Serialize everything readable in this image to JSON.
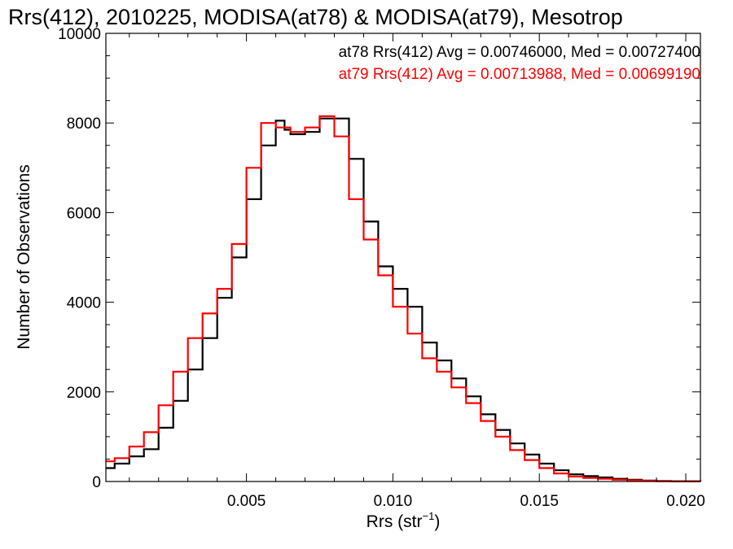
{
  "chart_data": {
    "type": "line",
    "title": "Rrs(412), 2010225, MODISA(at78) & MODISA(at79), Mesotrop",
    "xlabel_main": "Rrs (str",
    "xlabel_sup": "−1",
    "xlabel_close": ")",
    "ylabel": "Number of Observations",
    "xlim": [
      0.0002,
      0.0205
    ],
    "ylim": [
      0,
      10000
    ],
    "x_ticks": [
      {
        "value": 0.005,
        "label": "0.005"
      },
      {
        "value": 0.01,
        "label": "0.010"
      },
      {
        "value": 0.015,
        "label": "0.015"
      },
      {
        "value": 0.02,
        "label": "0.020"
      }
    ],
    "y_ticks": [
      {
        "value": 0,
        "label": "0"
      },
      {
        "value": 2000,
        "label": "2000"
      },
      {
        "value": 4000,
        "label": "4000"
      },
      {
        "value": 6000,
        "label": "6000"
      },
      {
        "value": 8000,
        "label": "8000"
      },
      {
        "value": 10000,
        "label": "10000"
      }
    ],
    "legend": [
      {
        "text": "at78 Rrs(412) Avg = 0.00746000, Med = 0.00727400",
        "color": "#000000"
      },
      {
        "text": "at79 Rrs(412) Avg = 0.00713988, Med = 0.00699190",
        "color": "#ff0000"
      }
    ],
    "legend_position": "top-right",
    "series": [
      {
        "color": "#000000",
        "points": [
          [
            0.0002,
            300
          ],
          [
            0.0005,
            400
          ],
          [
            0.001,
            560
          ],
          [
            0.0015,
            720
          ],
          [
            0.002,
            1200
          ],
          [
            0.0025,
            1800
          ],
          [
            0.003,
            2500
          ],
          [
            0.0035,
            3200
          ],
          [
            0.004,
            4100
          ],
          [
            0.0045,
            5000
          ],
          [
            0.005,
            6300
          ],
          [
            0.0055,
            7500
          ],
          [
            0.006,
            8050
          ],
          [
            0.0063,
            7850
          ],
          [
            0.0065,
            7750
          ],
          [
            0.007,
            7800
          ],
          [
            0.0075,
            8100
          ],
          [
            0.008,
            8100
          ],
          [
            0.0085,
            7200
          ],
          [
            0.009,
            5800
          ],
          [
            0.0095,
            4800
          ],
          [
            0.01,
            4300
          ],
          [
            0.0105,
            3900
          ],
          [
            0.011,
            3100
          ],
          [
            0.0115,
            2700
          ],
          [
            0.012,
            2300
          ],
          [
            0.0125,
            1900
          ],
          [
            0.013,
            1500
          ],
          [
            0.0135,
            1150
          ],
          [
            0.014,
            850
          ],
          [
            0.0145,
            600
          ],
          [
            0.015,
            400
          ],
          [
            0.0155,
            250
          ],
          [
            0.016,
            160
          ],
          [
            0.0165,
            120
          ],
          [
            0.017,
            90
          ],
          [
            0.0175,
            60
          ],
          [
            0.018,
            40
          ],
          [
            0.0185,
            20
          ],
          [
            0.019,
            10
          ],
          [
            0.0195,
            5
          ],
          [
            0.0205,
            0
          ]
        ]
      },
      {
        "color": "#ff0000",
        "points": [
          [
            0.0002,
            450
          ],
          [
            0.0005,
            520
          ],
          [
            0.001,
            780
          ],
          [
            0.0015,
            1100
          ],
          [
            0.002,
            1700
          ],
          [
            0.0025,
            2450
          ],
          [
            0.003,
            3200
          ],
          [
            0.0035,
            3750
          ],
          [
            0.004,
            4300
          ],
          [
            0.0045,
            5300
          ],
          [
            0.005,
            7000
          ],
          [
            0.0055,
            8000
          ],
          [
            0.006,
            7900
          ],
          [
            0.0065,
            7800
          ],
          [
            0.007,
            7900
          ],
          [
            0.0075,
            8150
          ],
          [
            0.008,
            7700
          ],
          [
            0.0085,
            6300
          ],
          [
            0.009,
            5400
          ],
          [
            0.0095,
            4600
          ],
          [
            0.01,
            3900
          ],
          [
            0.0105,
            3300
          ],
          [
            0.011,
            2750
          ],
          [
            0.0115,
            2450
          ],
          [
            0.012,
            2100
          ],
          [
            0.0125,
            1750
          ],
          [
            0.013,
            1350
          ],
          [
            0.0135,
            1000
          ],
          [
            0.014,
            700
          ],
          [
            0.0145,
            480
          ],
          [
            0.015,
            300
          ],
          [
            0.0155,
            180
          ],
          [
            0.016,
            110
          ],
          [
            0.0165,
            80
          ],
          [
            0.017,
            60
          ],
          [
            0.0175,
            40
          ],
          [
            0.018,
            25
          ],
          [
            0.0185,
            15
          ],
          [
            0.019,
            8
          ],
          [
            0.0195,
            4
          ],
          [
            0.0205,
            0
          ]
        ]
      }
    ]
  }
}
